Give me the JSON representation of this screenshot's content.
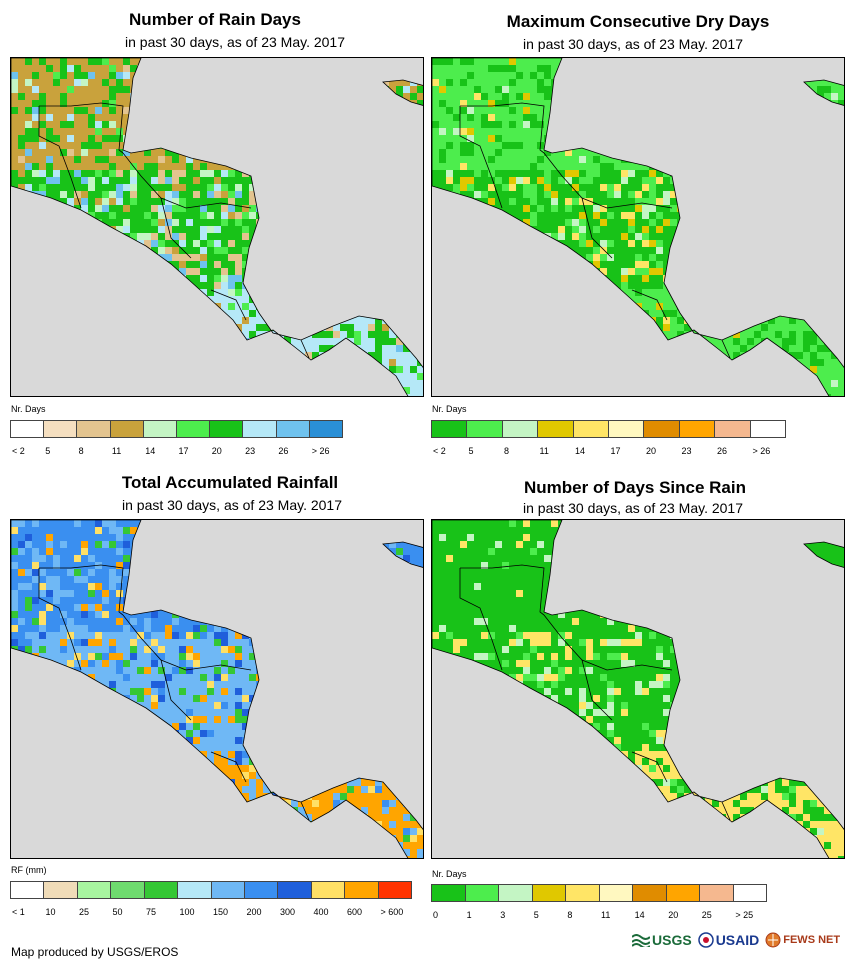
{
  "panels": [
    {
      "title": "Number of Rain Days",
      "subtitle": "in past 30 days, as of 23 May. 2017",
      "legend_title": "Nr. Days",
      "legend_colors": [
        "#ffffff",
        "#f5dfc0",
        "#e3c48f",
        "#c9a23c",
        "#c4f5c4",
        "#4ded4d",
        "#18c218",
        "#b5e8f7",
        "#6fc2ee",
        "#2a8fd6"
      ],
      "legend_ticks": [
        "< 2",
        "5",
        "8",
        "11",
        "14",
        "17",
        "20",
        "23",
        "26",
        "> 26"
      ],
      "land_palette": [
        "#c9a23c",
        "#e3c48f",
        "#18c218",
        "#4ded4d",
        "#c4f5c4",
        "#6fc2ee",
        "#b5e8f7"
      ]
    },
    {
      "title": "Maximum Consecutive Dry Days",
      "subtitle": "in past 30 days, as of 23 May. 2017",
      "legend_title": "Nr. Days",
      "legend_colors": [
        "#18c218",
        "#4ded4d",
        "#c4f5c4",
        "#e0c800",
        "#ffe566",
        "#fff8c0",
        "#e08c00",
        "#ffa500",
        "#f5b88f",
        "#ffffff"
      ],
      "legend_ticks": [
        "< 2",
        "5",
        "8",
        "11",
        "14",
        "17",
        "20",
        "23",
        "26",
        "> 26"
      ],
      "land_palette": [
        "#4ded4d",
        "#c4f5c4",
        "#18c218",
        "#e0c800",
        "#ffe566",
        "#4ded4d"
      ]
    },
    {
      "title": "Total Accumulated Rainfall",
      "subtitle": "in past 30 days, as of 23 May. 2017",
      "legend_title": "RF (mm)",
      "legend_colors": [
        "#ffffff",
        "#f0dcb8",
        "#a8f5a0",
        "#6fdb6f",
        "#35c735",
        "#b5e8f7",
        "#6fb8f5",
        "#3a8ff0",
        "#1f5fdb",
        "#ffe066",
        "#ffa500",
        "#ff3300"
      ],
      "legend_ticks": [
        "< 1",
        "10",
        "25",
        "50",
        "75",
        "100",
        "150",
        "200",
        "300",
        "400",
        "600",
        "> 600"
      ],
      "land_palette": [
        "#3a8ff0",
        "#1f5fdb",
        "#6fb8f5",
        "#35c735",
        "#ffe066",
        "#ffa500"
      ]
    },
    {
      "title": "Number of Days Since Rain",
      "subtitle": "in past 30 days, as of 23 May. 2017",
      "legend_title": "Nr. Days",
      "legend_colors": [
        "#18c218",
        "#4ded4d",
        "#c4f5c4",
        "#e0c800",
        "#ffe566",
        "#fff8c0",
        "#e08c00",
        "#ffa500",
        "#f5b88f",
        "#ffffff"
      ],
      "legend_ticks": [
        "0",
        "1",
        "3",
        "5",
        "8",
        "11",
        "14",
        "20",
        "25",
        "> 25"
      ],
      "land_palette": [
        "#18c218",
        "#4ded4d",
        "#18c218",
        "#c4f5c4",
        "#ffe566"
      ]
    }
  ],
  "footer": "Map produced by USGS/EROS",
  "logos": {
    "usgs": "USGS",
    "usaid": "USAID",
    "fewsnet": "FEWS NET"
  }
}
